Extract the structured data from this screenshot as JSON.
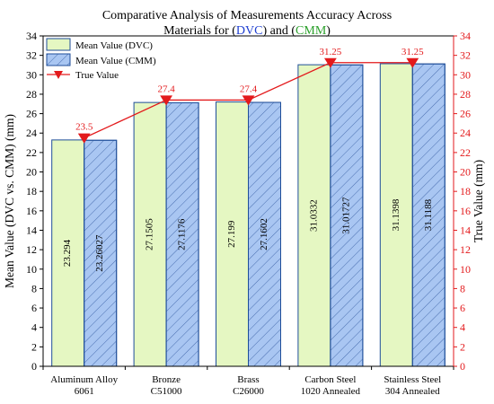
{
  "chart_data": {
    "type": "bar",
    "title_lines": [
      [
        {
          "text": "Comparative Analysis of Measurements Accuracy Across",
          "color": "#000000"
        }
      ],
      [
        {
          "text": "Materials for (",
          "color": "#000000"
        },
        {
          "text": "DVC",
          "color": "#1f3fd1"
        },
        {
          "text": ") and (",
          "color": "#000000"
        },
        {
          "text": "CMM",
          "color": "#2ca02c"
        },
        {
          "text": ")",
          "color": "#000000"
        }
      ]
    ],
    "categories": [
      [
        "Aluminum Alloy",
        "6061"
      ],
      [
        "Bronze",
        "C51000"
      ],
      [
        "Brass",
        "C26000"
      ],
      [
        "Carbon Steel",
        "1020 Annealed"
      ],
      [
        "Stainless Steel",
        "304 Annealed"
      ]
    ],
    "series": [
      {
        "name": "Mean Value (DVC)",
        "values": [
          23.294,
          27.1505,
          27.199,
          31.0332,
          31.1398
        ],
        "labels": [
          "23.294",
          "27.1505",
          "27.199",
          "31.0332",
          "31.1398"
        ],
        "fill": "#e5f7c2",
        "hatch": false
      },
      {
        "name": "Mean Value (CMM)",
        "values": [
          23.26027,
          27.1176,
          27.1602,
          31.01727,
          31.1188
        ],
        "labels": [
          "23.26027",
          "27.1176",
          "27.1602",
          "31.01727",
          "31.1188"
        ],
        "fill": "#a9c6f2",
        "hatch": true
      }
    ],
    "line_series": {
      "name": "True Value",
      "values": [
        23.5,
        27.4,
        27.4,
        31.25,
        31.25
      ],
      "labels": [
        "23.5",
        "27.4",
        "27.4",
        "31.25",
        "31.25"
      ],
      "color": "#e31a1c"
    },
    "ylabel": "Mean Value (DVC vs. CMM) (mm)",
    "y2label": "True Value (mm)",
    "ylim": [
      0,
      34
    ],
    "y2lim": [
      0,
      34
    ],
    "yticks": [
      0,
      2,
      4,
      6,
      8,
      10,
      12,
      14,
      16,
      18,
      20,
      22,
      24,
      26,
      28,
      30,
      32,
      34
    ],
    "y2ticks": [
      0,
      2,
      4,
      6,
      8,
      10,
      12,
      14,
      16,
      18,
      20,
      22,
      24,
      26,
      28,
      30,
      32,
      34
    ],
    "grid": false,
    "legend_position": "top-left",
    "colors": {
      "axis": "#000000",
      "right_axis": "#e31a1c",
      "bar_edge": "#1f4e99"
    }
  }
}
